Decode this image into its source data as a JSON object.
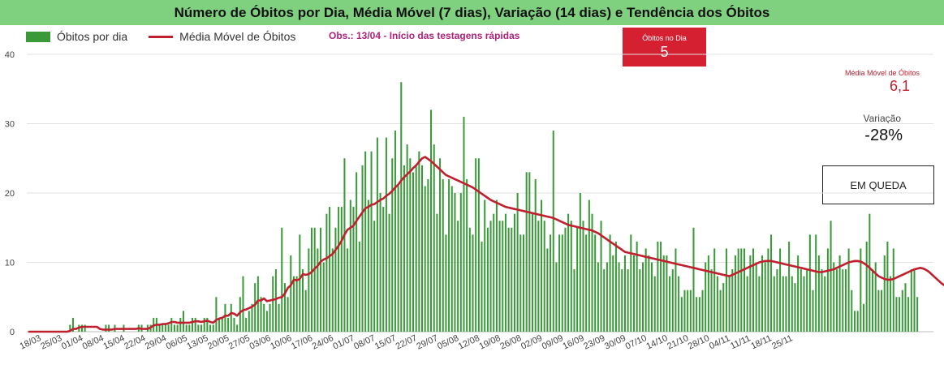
{
  "title": "Número de Óbitos por Dia, Média Móvel (7 dias), Variação (14 dias) e Tendência dos Óbitos",
  "legend": {
    "bars": "Óbitos por dia",
    "line": "Média Móvel de Óbitos"
  },
  "note": "Obs.: 13/04 - Início das testagens rápidas",
  "cards": {
    "obitos_dia_label": "Óbitos no Dia",
    "obitos_dia_value": "5",
    "media_movel_label": "Média Móvel de Óbitos",
    "media_movel_value": "6,1",
    "variacao_label": "Variação",
    "variacao_value": "-28%",
    "tendencia": "EM QUEDA"
  },
  "colors": {
    "bars": "#3a9a3a",
    "line": "#c0202e",
    "title_bg": "#7fd07f",
    "card_red": "#d52032"
  },
  "chart_data": {
    "type": "bar+line",
    "start_date": "2020-03-18",
    "ylim": [
      0,
      40
    ],
    "yticks": [
      0,
      10,
      20,
      30,
      40
    ],
    "grid": true,
    "legend_placement": "top-left",
    "xtick_labels": [
      "18/03",
      "25/03",
      "01/04",
      "08/04",
      "15/04",
      "22/04",
      "29/04",
      "06/05",
      "13/05",
      "20/05",
      "27/05",
      "03/06",
      "10/06",
      "17/06",
      "24/06",
      "01/07",
      "08/07",
      "15/07",
      "22/07",
      "29/07",
      "05/08",
      "12/08",
      "19/08",
      "26/08",
      "02/09",
      "09/09",
      "16/09",
      "23/09",
      "30/09",
      "07/10",
      "14/10",
      "21/10",
      "28/10",
      "04/11",
      "11/11",
      "18/11",
      "25/11"
    ],
    "series": [
      {
        "name": "Óbitos por dia",
        "kind": "bar",
        "values": [
          0,
          0,
          0,
          0,
          0,
          0,
          0,
          0,
          0,
          0,
          0,
          0,
          0,
          0,
          1,
          2,
          0,
          1,
          1,
          1,
          0,
          0,
          0,
          0,
          0,
          0,
          1,
          1,
          0,
          1,
          0,
          0,
          1,
          0,
          0,
          0,
          0,
          1,
          1,
          0,
          1,
          1,
          2,
          2,
          1,
          1,
          1,
          1,
          2,
          1,
          1,
          2,
          3,
          1,
          1,
          2,
          2,
          1,
          1,
          2,
          2,
          1,
          1,
          5,
          2,
          2,
          4,
          2,
          4,
          2,
          1,
          5,
          8,
          2,
          3,
          4,
          7,
          8,
          5,
          4,
          3,
          4,
          8,
          9,
          4,
          15,
          7,
          5,
          11,
          8,
          8,
          14,
          9,
          6,
          12,
          15,
          15,
          12,
          15,
          10,
          17,
          18,
          12,
          15,
          18,
          18,
          25,
          12,
          19,
          18,
          23,
          13,
          24,
          26,
          19,
          26,
          16,
          28,
          20,
          18,
          28,
          17,
          25,
          29,
          21,
          36,
          24,
          27,
          25,
          23,
          24,
          26,
          24,
          21,
          22,
          32,
          27,
          17,
          25,
          22,
          14,
          22,
          21,
          20,
          16,
          20,
          31,
          22,
          15,
          14,
          25,
          25,
          13,
          19,
          15,
          16,
          17,
          19,
          16,
          16,
          17,
          15,
          15,
          17,
          20,
          14,
          14,
          23,
          23,
          17,
          22,
          16,
          19,
          16,
          12,
          14,
          29,
          10,
          14,
          14,
          15,
          17,
          16,
          9,
          15,
          20,
          16,
          14,
          19,
          17,
          14,
          10,
          16,
          9,
          10,
          14,
          11,
          13,
          10,
          9,
          11,
          9,
          14,
          11,
          13,
          9,
          10,
          12,
          11,
          10,
          8,
          13,
          13,
          11,
          11,
          8,
          9,
          12,
          8,
          5,
          6,
          6,
          6,
          15,
          5,
          5,
          6,
          10,
          11,
          9,
          12,
          8,
          6,
          7,
          12,
          8,
          9,
          11,
          12,
          12,
          12,
          8,
          11,
          12,
          10,
          8,
          11,
          10,
          12,
          14,
          8,
          9,
          12,
          8,
          8,
          13,
          8,
          7,
          11,
          9,
          8,
          9,
          14,
          6,
          14,
          11,
          9,
          8,
          12,
          16,
          10,
          9,
          11,
          9,
          9,
          12,
          6,
          3,
          3,
          12,
          4,
          13,
          17,
          9,
          10,
          6,
          6,
          11,
          13,
          8,
          12,
          5,
          5,
          6,
          7,
          5,
          9,
          9,
          5
        ]
      },
      {
        "name": "Média Móvel de Óbitos",
        "kind": "line",
        "values": [
          0,
          0,
          0,
          0,
          0,
          0,
          0,
          0,
          0,
          0,
          0,
          0,
          0,
          0,
          0.1,
          0.4,
          0.4,
          0.6,
          0.7,
          0.7,
          0.7,
          0.7,
          0.7,
          0.7,
          0.4,
          0.3,
          0.3,
          0.3,
          0.3,
          0.4,
          0.4,
          0.4,
          0.4,
          0.4,
          0.4,
          0.4,
          0.4,
          0.5,
          0.4,
          0.4,
          0.4,
          0.6,
          0.9,
          1.0,
          1.0,
          1.1,
          1.1,
          1.2,
          1.4,
          1.4,
          1.3,
          1.3,
          1.3,
          1.3,
          1.3,
          1.4,
          1.5,
          1.5,
          1.4,
          1.5,
          1.6,
          1.4,
          1.3,
          1.7,
          1.9,
          2.0,
          2.3,
          2.3,
          2.7,
          2.6,
          2.3,
          2.8,
          3.1,
          3.2,
          3.4,
          3.6,
          3.9,
          4.5,
          4.5,
          4.8,
          4.4,
          4.5,
          4.6,
          4.7,
          4.9,
          5.0,
          5.5,
          6.3,
          6.7,
          7.5,
          7.4,
          7.6,
          8.3,
          8.2,
          8.3,
          8.6,
          9.1,
          9.5,
          10.1,
          10.4,
          10.6,
          10.9,
          11.2,
          11.8,
          12.4,
          13.1,
          14.0,
          14.7,
          15.0,
          15.3,
          16.0,
          16.6,
          17.2,
          17.8,
          18.0,
          18.3,
          18.4,
          18.7,
          19.0,
          19.2,
          19.6,
          19.9,
          20.3,
          20.8,
          21.2,
          21.8,
          22.3,
          22.7,
          23.1,
          23.6,
          24.0,
          24.5,
          25.0,
          25.2,
          24.9,
          24.6,
          24.2,
          23.8,
          23.4,
          23.0,
          22.6,
          22.4,
          22.2,
          22.0,
          21.8,
          21.6,
          21.4,
          21.2,
          21.0,
          20.8,
          20.5,
          20.2,
          19.9,
          19.6,
          19.3,
          19.0,
          18.8,
          18.6,
          18.4,
          18.2,
          18.0,
          17.9,
          17.8,
          17.7,
          17.6,
          17.5,
          17.4,
          17.3,
          17.2,
          17.1,
          17.0,
          16.9,
          16.8,
          16.7,
          16.6,
          16.5,
          16.4,
          16.2,
          16.0,
          15.8,
          15.6,
          15.4,
          15.3,
          15.2,
          15.1,
          15.0,
          14.9,
          14.8,
          14.7,
          14.6,
          14.4,
          14.2,
          13.9,
          13.6,
          13.3,
          13.0,
          12.7,
          12.4,
          12.1,
          11.8,
          11.5,
          11.4,
          11.3,
          11.2,
          11.1,
          11.0,
          10.9,
          10.8,
          10.7,
          10.6,
          10.5,
          10.4,
          10.3,
          10.2,
          10.1,
          10.0,
          9.9,
          9.8,
          9.7,
          9.6,
          9.5,
          9.4,
          9.3,
          9.2,
          9.1,
          9.0,
          8.9,
          8.8,
          8.7,
          8.6,
          8.5,
          8.4,
          8.3,
          8.2,
          8.1,
          8.0,
          8.2,
          8.4,
          8.6,
          8.8,
          9.0,
          9.2,
          9.4,
          9.6,
          9.8,
          10.0,
          10.1,
          10.2,
          10.2,
          10.2,
          10.1,
          10.0,
          9.9,
          9.8,
          9.7,
          9.6,
          9.5,
          9.4,
          9.3,
          9.2,
          9.1,
          9.0,
          8.9,
          8.8,
          8.7,
          8.6,
          8.6,
          8.7,
          8.8,
          8.9,
          9.0,
          9.2,
          9.4,
          9.6,
          9.8,
          10.0,
          10.1,
          10.2,
          10.2,
          10.1,
          9.9,
          9.6,
          9.2,
          8.8,
          8.4,
          8.0,
          7.8,
          7.6,
          7.5,
          7.5,
          7.6,
          7.8,
          8.0,
          8.2,
          8.4,
          8.6,
          8.8,
          9.0,
          9.1,
          9.2,
          9.1,
          8.9,
          8.6,
          8.2,
          7.8,
          7.4,
          7.0,
          6.7,
          6.4,
          6.2,
          6.1,
          6.1
        ]
      }
    ]
  }
}
